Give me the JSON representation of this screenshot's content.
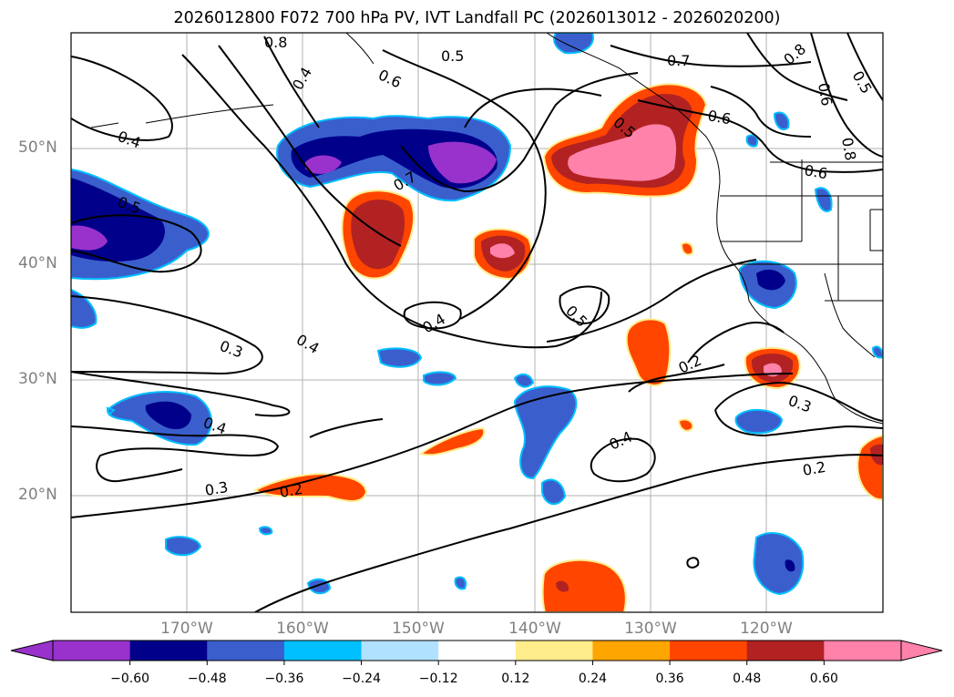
{
  "title": "2026012800 F072 700 hPa PV, IVT Landfall PC (2026013012 - 2026020200)",
  "map": {
    "lat_labels": [
      "50°N",
      "40°N",
      "30°N",
      "20°N"
    ],
    "lon_labels": [
      "170°W",
      "160°W",
      "150°W",
      "140°W",
      "130°W",
      "120°W"
    ]
  },
  "contour_labels": [
    {
      "text": "0.8"
    },
    {
      "text": "0.5"
    },
    {
      "text": "0.6"
    },
    {
      "text": "0.4"
    },
    {
      "text": "0.7"
    },
    {
      "text": "0.8"
    },
    {
      "text": "0.5"
    },
    {
      "text": "0.6"
    },
    {
      "text": "0.4"
    },
    {
      "text": "0.5"
    },
    {
      "text": "0.7"
    },
    {
      "text": "0.5"
    },
    {
      "text": "0.6"
    },
    {
      "text": "0.8"
    },
    {
      "text": "0.6"
    },
    {
      "text": "0.4"
    },
    {
      "text": "0.5"
    },
    {
      "text": "0.3"
    },
    {
      "text": "0.4"
    },
    {
      "text": "0.2"
    },
    {
      "text": "0.3"
    },
    {
      "text": "0.4"
    },
    {
      "text": "0.4"
    },
    {
      "text": "0.3"
    },
    {
      "text": "0.2"
    },
    {
      "text": "0.2"
    }
  ],
  "colorbar": {
    "colors": [
      "#9932cc",
      "#00008b",
      "#3a5fcd",
      "#00bfff",
      "#b0e2ff",
      "#ffffff",
      "#ffec8b",
      "#ffa500",
      "#ff4500",
      "#b22222",
      "#ff82ab"
    ],
    "ticks": [
      "−0.60",
      "−0.48",
      "−0.36",
      "−0.24",
      "−0.12",
      "0.12",
      "0.24",
      "0.36",
      "0.48",
      "0.60"
    ]
  }
}
